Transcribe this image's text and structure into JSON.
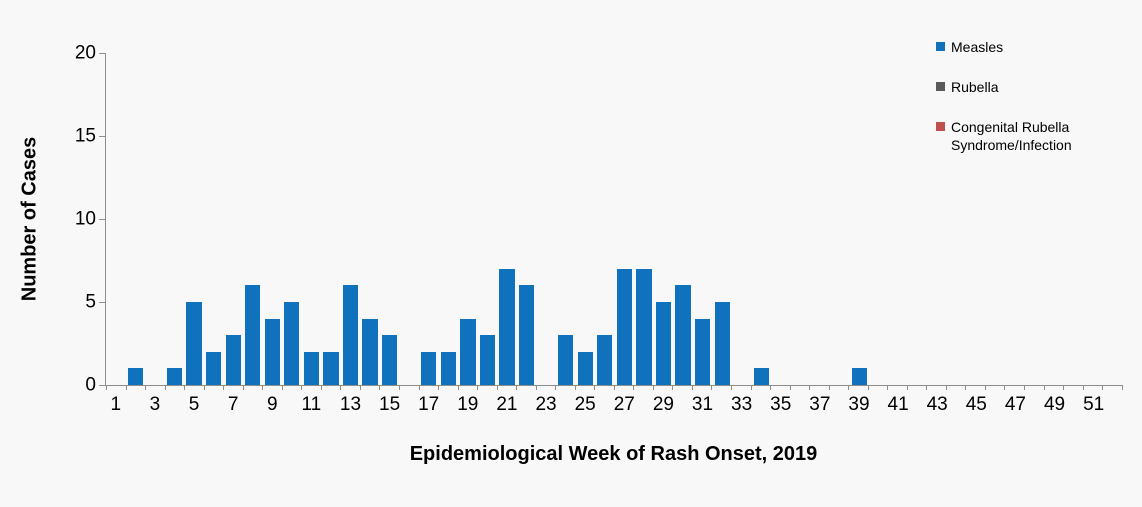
{
  "figure": {
    "background": "#F8F8F8",
    "axis_color": "#8E8E8E",
    "text_color": "#000000"
  },
  "chart_data": {
    "type": "bar",
    "title": "",
    "xlabel": "Epidemiological Week of Rash Onset, 2019",
    "ylabel": "Number of Cases",
    "ylim": [
      0,
      20
    ],
    "yticks": [
      0,
      5,
      10,
      15,
      20
    ],
    "grid": false,
    "legend_position": "top-right",
    "categories": [
      1,
      2,
      3,
      4,
      5,
      6,
      7,
      8,
      9,
      10,
      11,
      12,
      13,
      14,
      15,
      16,
      17,
      18,
      19,
      20,
      21,
      22,
      23,
      24,
      25,
      26,
      27,
      28,
      29,
      30,
      31,
      32,
      33,
      34,
      35,
      36,
      37,
      38,
      39,
      40,
      41,
      42,
      43,
      44,
      45,
      46,
      47,
      48,
      49,
      50,
      51,
      52
    ],
    "xtick_labels": [
      1,
      3,
      5,
      7,
      9,
      11,
      13,
      15,
      17,
      19,
      21,
      23,
      25,
      27,
      29,
      31,
      33,
      35,
      37,
      39,
      41,
      43,
      45,
      47,
      49,
      51
    ],
    "series": [
      {
        "name": "Measles",
        "color": "#1072BC",
        "values": [
          0,
          1,
          0,
          1,
          5,
          2,
          3,
          6,
          4,
          5,
          2,
          2,
          6,
          4,
          3,
          0,
          2,
          2,
          4,
          3,
          7,
          6,
          0,
          3,
          2,
          3,
          7,
          7,
          5,
          6,
          4,
          5,
          0,
          1,
          0,
          0,
          0,
          0,
          1,
          0,
          0,
          0,
          0,
          0,
          0,
          0,
          0,
          0,
          0,
          0,
          0,
          0
        ]
      },
      {
        "name": "Rubella",
        "color": "#5A5A5A",
        "values": [
          0,
          0,
          0,
          0,
          0,
          0,
          0,
          0,
          0,
          0,
          0,
          0,
          0,
          0,
          0,
          0,
          0,
          0,
          0,
          0,
          0,
          0,
          0,
          0,
          0,
          0,
          0,
          0,
          0,
          0,
          0,
          0,
          0,
          0,
          0,
          0,
          0,
          0,
          0,
          0,
          0,
          0,
          0,
          0,
          0,
          0,
          0,
          0,
          0,
          0,
          0,
          0
        ]
      },
      {
        "name": "Congenital Rubella Syndrome/Infection",
        "color": "#C0504D",
        "values": [
          0,
          0,
          0,
          0,
          0,
          0,
          0,
          0,
          0,
          0,
          0,
          0,
          0,
          0,
          0,
          0,
          0,
          0,
          0,
          0,
          0,
          0,
          0,
          0,
          0,
          0,
          0,
          0,
          0,
          0,
          0,
          0,
          0,
          0,
          0,
          0,
          0,
          0,
          0,
          0,
          0,
          0,
          0,
          0,
          0,
          0,
          0,
          0,
          0,
          0,
          0,
          0
        ]
      }
    ]
  }
}
